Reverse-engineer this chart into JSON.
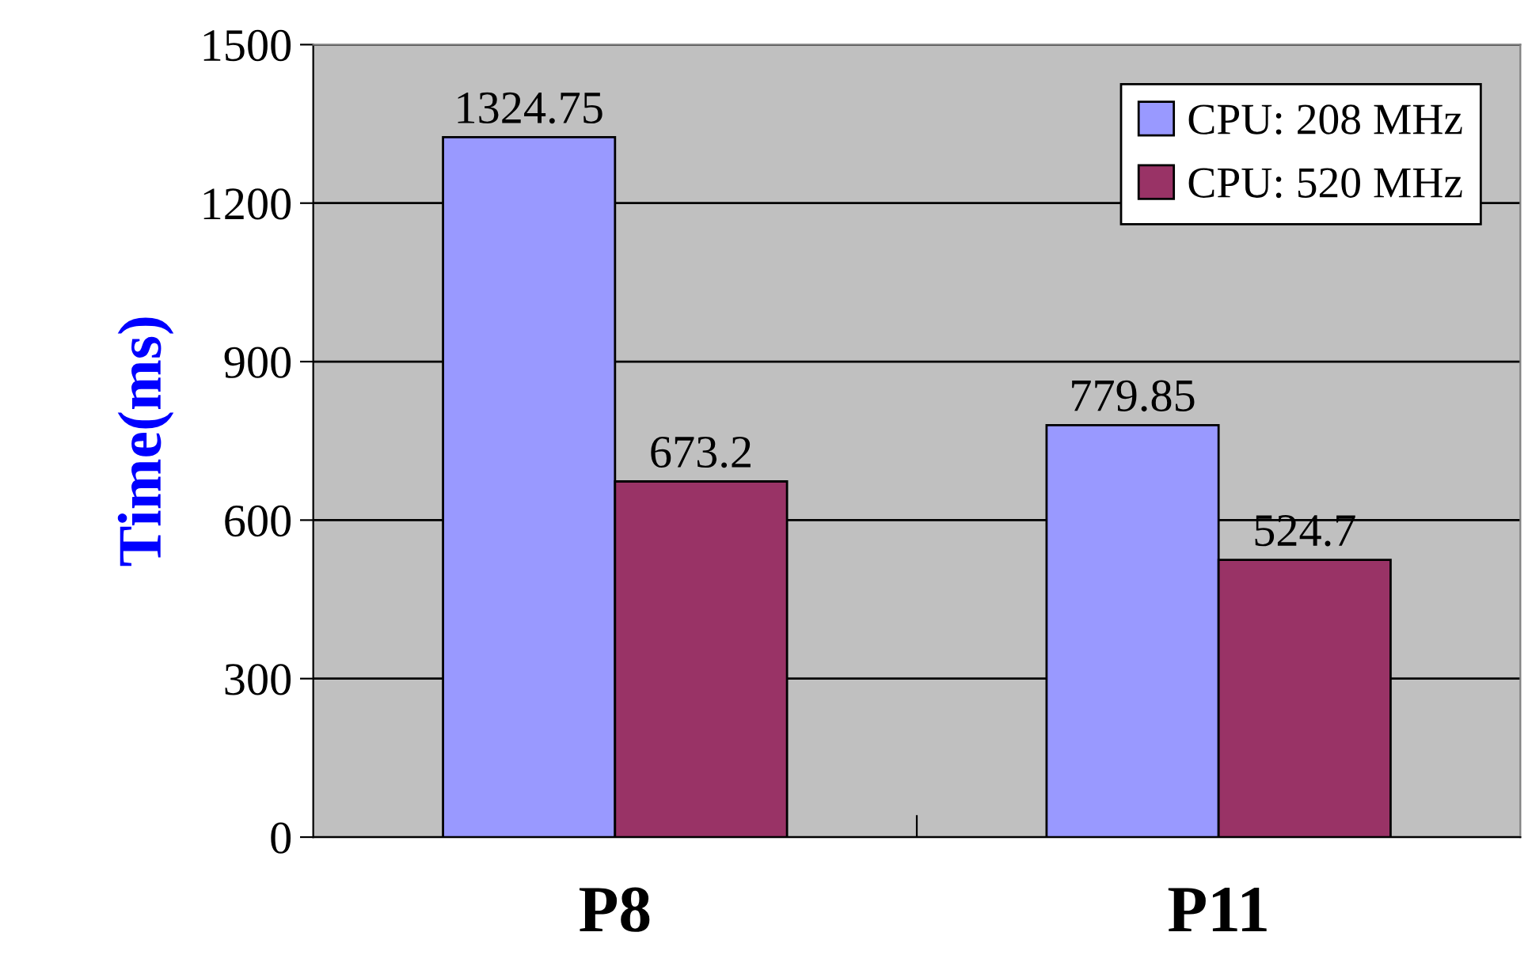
{
  "chart_data": {
    "type": "bar",
    "ylabel": "Time(ms)",
    "categories": [
      "P8",
      "P11"
    ],
    "series": [
      {
        "name": "CPU: 208 MHz",
        "color": "#9999ff",
        "values": [
          1324.75,
          779.85
        ]
      },
      {
        "name": "CPU: 520 MHz",
        "color": "#993366",
        "values": [
          673.2,
          524.7
        ]
      }
    ],
    "ylim": [
      0,
      1500
    ],
    "yticks": [
      0,
      300,
      600,
      900,
      1200,
      1500
    ],
    "grid": "y",
    "legend": "top right",
    "data_labels": true
  }
}
